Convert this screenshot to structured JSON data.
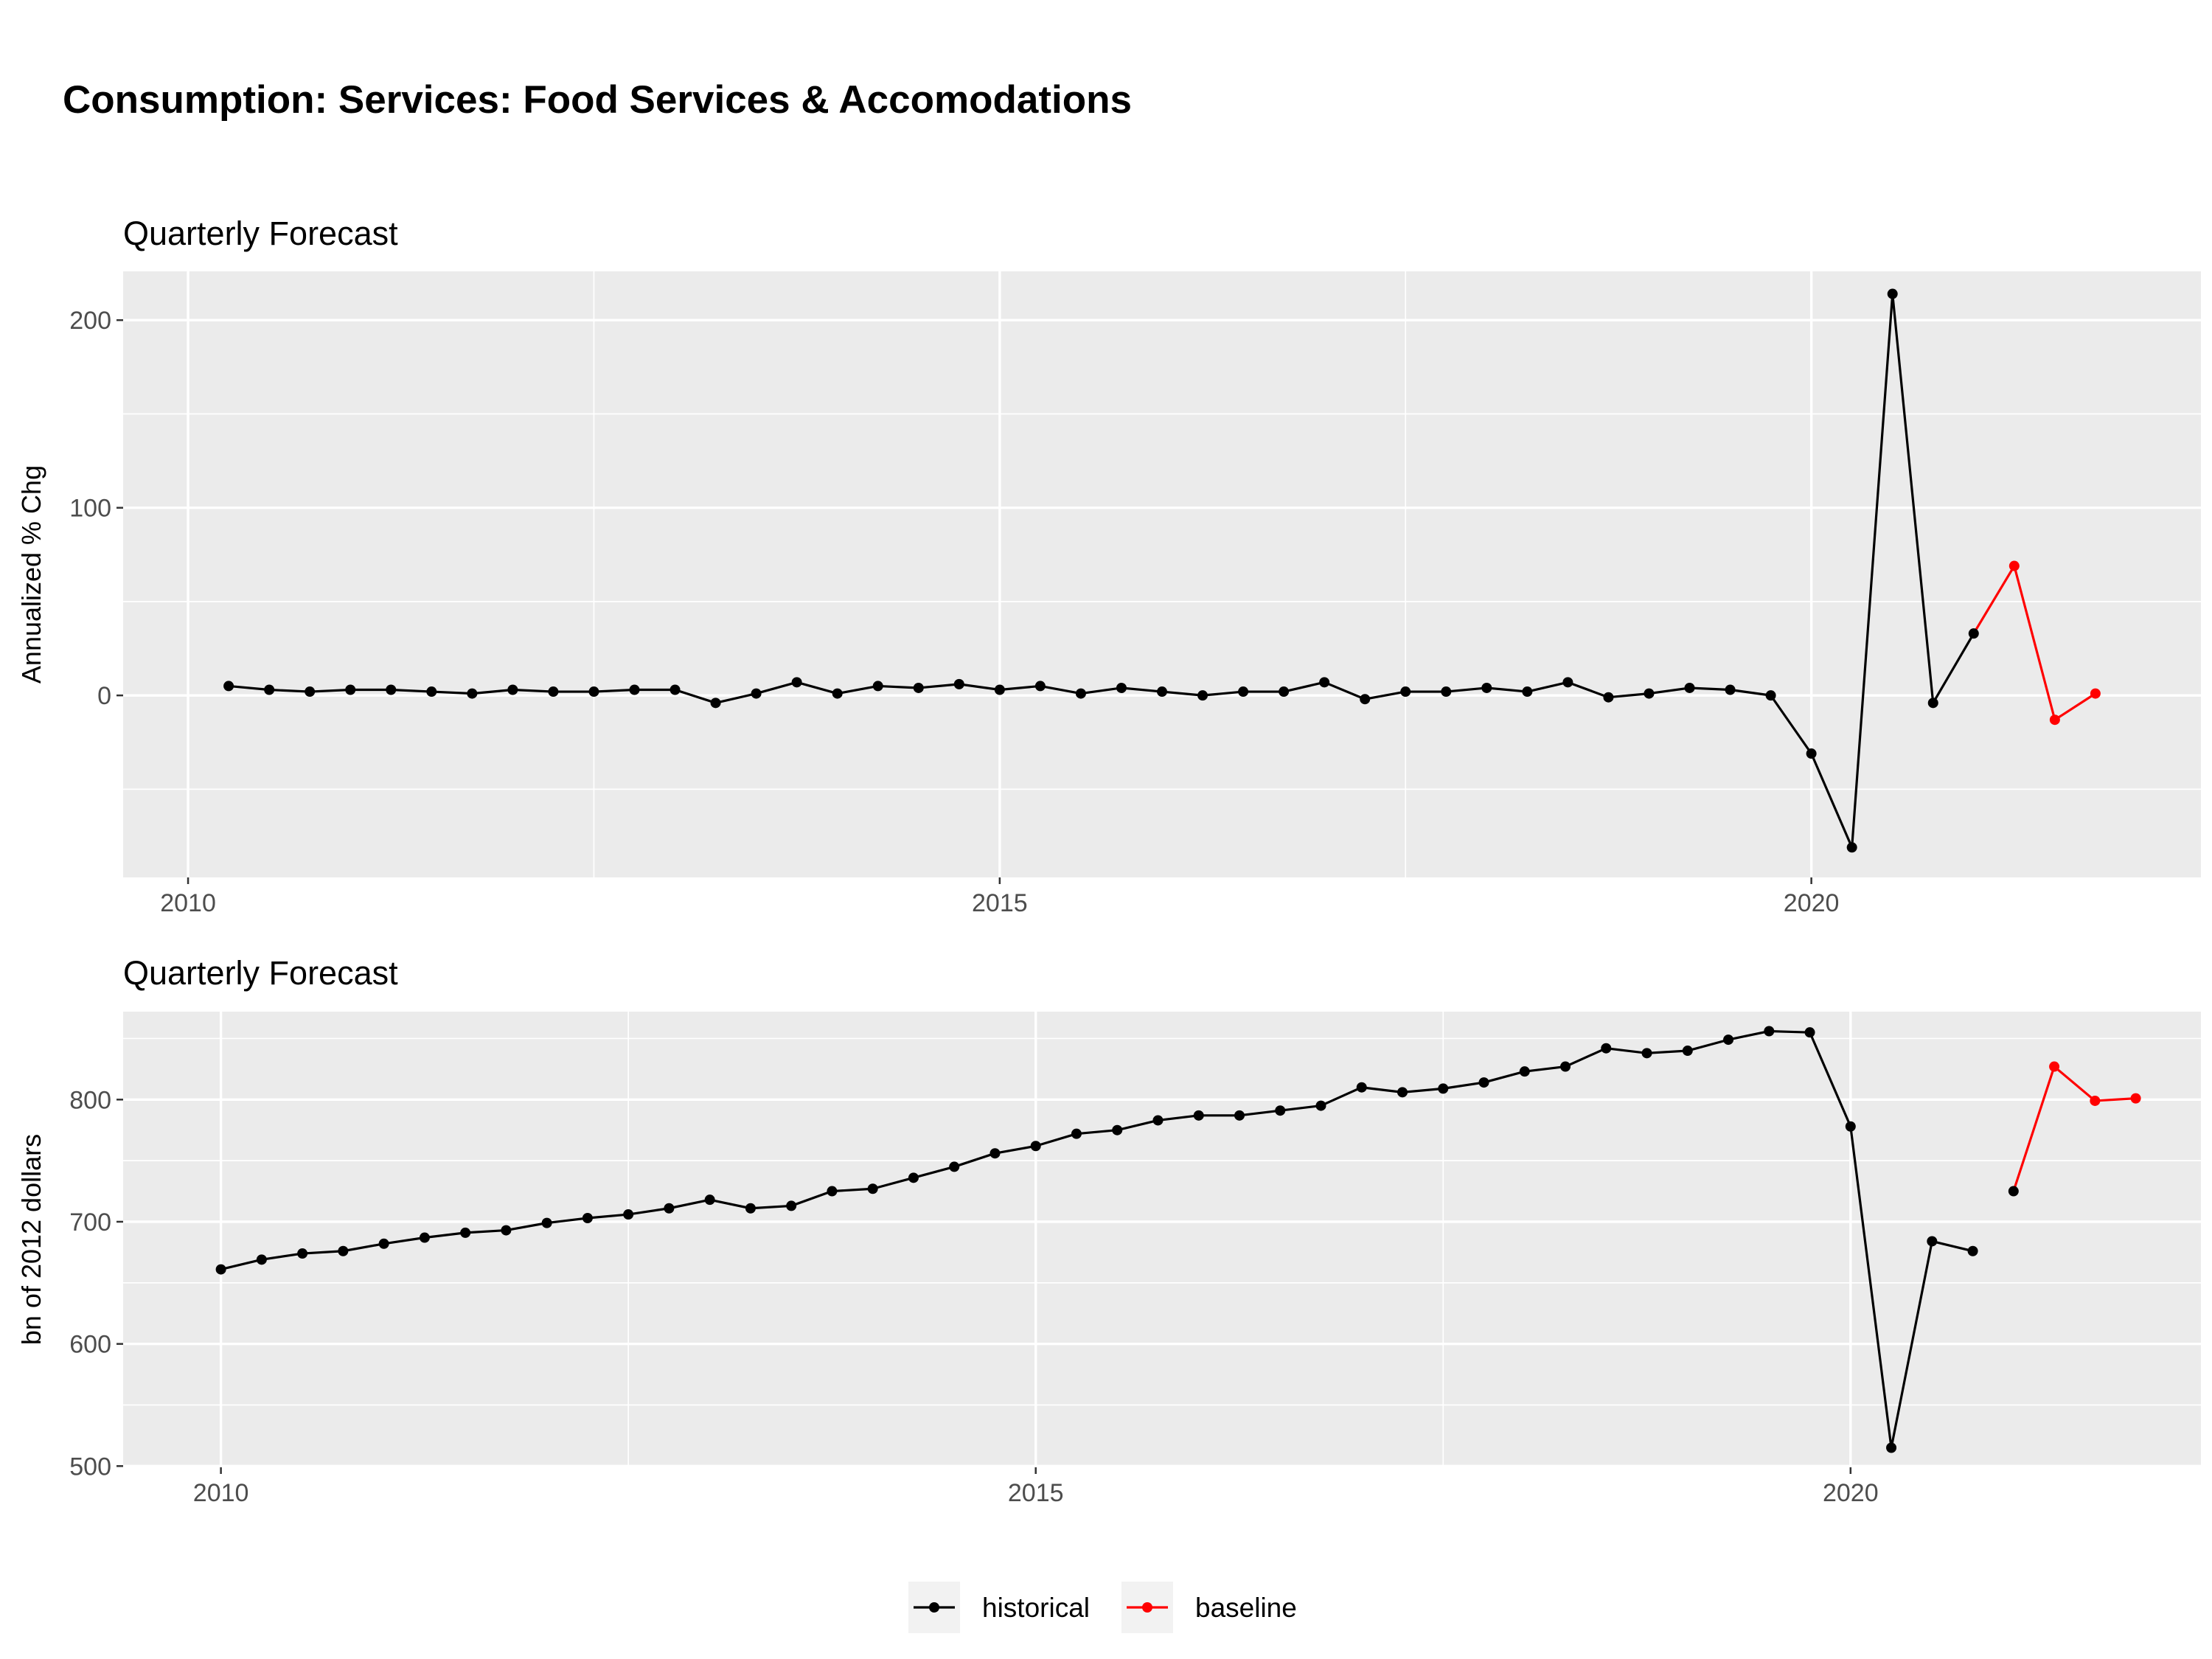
{
  "title": "Consumption: Services: Food Services & Accomodations",
  "colors": {
    "historical": "#000000",
    "baseline": "#FF0000",
    "panel_bg": "#EBEBEB"
  },
  "legend": {
    "position": "bottom",
    "items": [
      {
        "name": "historical",
        "color": "#000000"
      },
      {
        "name": "baseline",
        "color": "#FF0000"
      }
    ]
  },
  "chart_data": [
    {
      "type": "line",
      "title": "Quarterly Forecast",
      "xlabel": "",
      "ylabel": "Annualized % Chg",
      "xlim": [
        2009.6,
        2022.4
      ],
      "ylim": [
        -97,
        226
      ],
      "xticks": [
        2010,
        2015,
        2020
      ],
      "yticks": [
        0,
        100,
        200
      ],
      "grid": true,
      "series": [
        {
          "name": "historical",
          "color": "#000000",
          "x": [
            2010.25,
            2010.5,
            2010.75,
            2011.0,
            2011.25,
            2011.5,
            2011.75,
            2012.0,
            2012.25,
            2012.5,
            2012.75,
            2013.0,
            2013.25,
            2013.5,
            2013.75,
            2014.0,
            2014.25,
            2014.5,
            2014.75,
            2015.0,
            2015.25,
            2015.5,
            2015.75,
            2016.0,
            2016.25,
            2016.5,
            2016.75,
            2017.0,
            2017.25,
            2017.5,
            2017.75,
            2018.0,
            2018.25,
            2018.5,
            2018.75,
            2019.0,
            2019.25,
            2019.5,
            2019.75,
            2020.0,
            2020.25,
            2020.5,
            2020.75,
            2021.0
          ],
          "y": [
            5,
            3,
            2,
            3,
            3,
            2,
            1,
            3,
            2,
            2,
            3,
            3,
            -4,
            1,
            7,
            1,
            5,
            4,
            6,
            3,
            5,
            1,
            4,
            2,
            0,
            2,
            2,
            7,
            -2,
            2,
            2,
            4,
            2,
            7,
            -1,
            1,
            4,
            3,
            0,
            -31,
            -81,
            214,
            -4,
            33
          ]
        },
        {
          "name": "baseline",
          "color": "#FF0000",
          "x": [
            2021.25,
            2021.5,
            2021.75
          ],
          "y": [
            69,
            -13,
            1
          ]
        }
      ],
      "connector": {
        "x": [
          2021.0,
          2021.25
        ],
        "y": [
          33,
          69
        ]
      }
    },
    {
      "type": "line",
      "title": "Quarterly Forecast",
      "xlabel": "",
      "ylabel": "bn of 2012 dollars",
      "xlim": [
        2009.4,
        2022.15
      ],
      "ylim": [
        499,
        872
      ],
      "xticks": [
        2010,
        2015,
        2020
      ],
      "yticks": [
        500,
        600,
        700,
        800
      ],
      "grid": true,
      "series": [
        {
          "name": "historical",
          "color": "#000000",
          "x": [
            2010.0,
            2010.25,
            2010.5,
            2010.75,
            2011.0,
            2011.25,
            2011.5,
            2011.75,
            2012.0,
            2012.25,
            2012.5,
            2012.75,
            2013.0,
            2013.25,
            2013.5,
            2013.75,
            2014.0,
            2014.25,
            2014.5,
            2014.75,
            2015.0,
            2015.25,
            2015.5,
            2015.75,
            2016.0,
            2016.25,
            2016.5,
            2016.75,
            2017.0,
            2017.25,
            2017.5,
            2017.75,
            2018.0,
            2018.25,
            2018.5,
            2018.75,
            2019.0,
            2019.25,
            2019.5,
            2019.75,
            2020.0,
            2020.25,
            2020.5,
            2020.75
          ],
          "y": [
            661,
            669,
            674,
            676,
            682,
            687,
            691,
            693,
            699,
            703,
            706,
            711,
            718,
            711,
            713,
            725,
            727,
            736,
            745,
            756,
            762,
            772,
            775,
            783,
            787,
            787,
            791,
            795,
            810,
            806,
            809,
            814,
            823,
            827,
            842,
            838,
            840,
            849,
            856,
            855,
            778,
            515,
            684,
            676
          ]
        },
        {
          "name": "baseline",
          "color": "#FF0000",
          "x": [
            2021.25,
            2021.5,
            2021.75
          ],
          "y": [
            827,
            799,
            801
          ]
        }
      ],
      "extra_historical": {
        "x": [
          2021.0
        ],
        "y": [
          725
        ]
      },
      "connector": {
        "x": [
          2021.0,
          2021.25
        ],
        "y": [
          725,
          827
        ]
      }
    }
  ]
}
